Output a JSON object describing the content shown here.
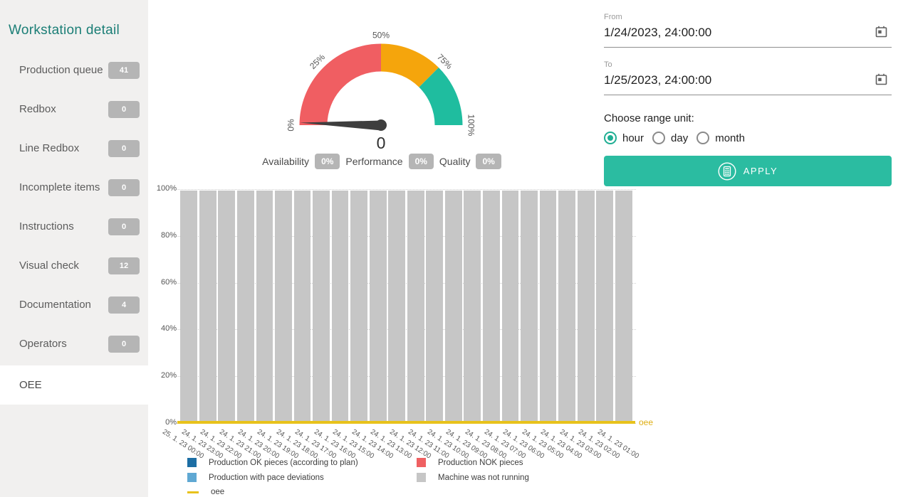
{
  "sidebar": {
    "title": "Workstation detail",
    "items": [
      {
        "label": "Production queue",
        "badge": "41",
        "selected": false
      },
      {
        "label": "Redbox",
        "badge": "0",
        "selected": false
      },
      {
        "label": "Line Redbox",
        "badge": "0",
        "selected": false
      },
      {
        "label": "Incomplete items",
        "badge": "0",
        "selected": false
      },
      {
        "label": "Instructions",
        "badge": "0",
        "selected": false
      },
      {
        "label": "Visual check",
        "badge": "12",
        "selected": false
      },
      {
        "label": "Documentation",
        "badge": "4",
        "selected": false
      },
      {
        "label": "Operators",
        "badge": "0",
        "selected": false
      },
      {
        "label": "OEE",
        "badge": null,
        "selected": true
      }
    ]
  },
  "gauge": {
    "value": "0",
    "tick_labels": [
      "0%",
      "25%",
      "50%",
      "75%",
      "100%"
    ],
    "segments": [
      {
        "from": 0,
        "to": 50,
        "color": "#f05e62"
      },
      {
        "from": 50,
        "to": 75,
        "color": "#f5a50c"
      },
      {
        "from": 75,
        "to": 100,
        "color": "#1fbd9f"
      }
    ],
    "needle_color": "#3e3e3e",
    "kpis": [
      {
        "label": "Availability",
        "value": "0%"
      },
      {
        "label": "Performance",
        "value": "0%"
      },
      {
        "label": "Quality",
        "value": "0%"
      }
    ]
  },
  "filters": {
    "from": {
      "label": "From",
      "value": "1/24/2023, 24:00:00"
    },
    "to": {
      "label": "To",
      "value": "1/25/2023, 24:00:00"
    },
    "range_unit_label": "Choose range unit:",
    "range_units": [
      {
        "label": "hour",
        "selected": true
      },
      {
        "label": "day",
        "selected": false
      },
      {
        "label": "month",
        "selected": false
      }
    ],
    "apply_label": "APPLY"
  },
  "chart_data": {
    "type": "bar",
    "stacked": true,
    "title": "",
    "xlabel": "",
    "ylabel": "",
    "ylim": [
      0,
      100
    ],
    "yticks": [
      "0%",
      "20%",
      "40%",
      "60%",
      "80%",
      "100%"
    ],
    "grid": "dotted-horizontal",
    "legend_position": "bottom",
    "categories": [
      "25. 1. 23 00:00",
      "24. 1. 23 23:00",
      "24. 1. 23 22:00",
      "24. 1. 23 21:00",
      "24. 1. 23 20:00",
      "24. 1. 23 19:00",
      "24. 1. 23 18:00",
      "24. 1. 23 17:00",
      "24. 1. 23 16:00",
      "24. 1. 23 15:00",
      "24. 1. 23 14:00",
      "24. 1. 23 13:00",
      "24. 1. 23 12:00",
      "24. 1. 23 11:00",
      "24. 1. 23 10:00",
      "24. 1. 23 09:00",
      "24. 1. 23 08:00",
      "24. 1. 23 07:00",
      "24. 1. 23 06:00",
      "24. 1. 23 05:00",
      "24. 1. 23 04:00",
      "24. 1. 23 03:00",
      "24. 1. 23 02:00",
      "24. 1. 23 01:00"
    ],
    "series": [
      {
        "name": "Production OK pieces (according to plan)",
        "kind": "bar",
        "color": "#1c6ea4",
        "values": [
          0,
          0,
          0,
          0,
          0,
          0,
          0,
          0,
          0,
          0,
          0,
          0,
          0,
          0,
          0,
          0,
          0,
          0,
          0,
          0,
          0,
          0,
          0,
          0
        ]
      },
      {
        "name": "Production NOK pieces",
        "kind": "bar",
        "color": "#ef6062",
        "values": [
          0,
          0,
          0,
          0,
          0,
          0,
          0,
          0,
          0,
          0,
          0,
          0,
          0,
          0,
          0,
          0,
          0,
          0,
          0,
          0,
          0,
          0,
          0,
          0
        ]
      },
      {
        "name": "Production with pace deviations",
        "kind": "bar",
        "color": "#5fa8d3",
        "values": [
          0,
          0,
          0,
          0,
          0,
          0,
          0,
          0,
          0,
          0,
          0,
          0,
          0,
          0,
          0,
          0,
          0,
          0,
          0,
          0,
          0,
          0,
          0,
          0
        ]
      },
      {
        "name": "Machine was not running",
        "kind": "bar",
        "color": "#c6c6c6",
        "values": [
          100,
          100,
          100,
          100,
          100,
          100,
          100,
          100,
          100,
          100,
          100,
          100,
          100,
          100,
          100,
          100,
          100,
          100,
          100,
          100,
          100,
          100,
          100,
          100
        ]
      },
      {
        "name": "oee",
        "kind": "line",
        "color": "#e8c21b",
        "values": [
          0,
          0,
          0,
          0,
          0,
          0,
          0,
          0,
          0,
          0,
          0,
          0,
          0,
          0,
          0,
          0,
          0,
          0,
          0,
          0,
          0,
          0,
          0,
          0
        ]
      }
    ]
  }
}
